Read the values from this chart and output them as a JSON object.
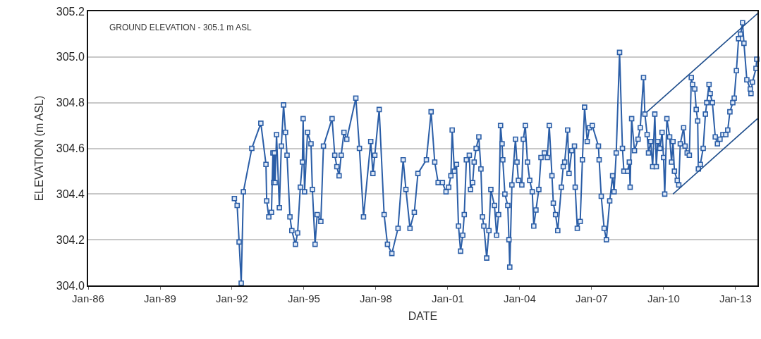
{
  "chart_data": {
    "type": "line",
    "xlabel": "DATE",
    "ylabel": "ELEVATION (m ASL)",
    "annotations": [
      "GROUND ELEVATION - 305.1 m ASL"
    ],
    "xlim": [
      "1986-01-01",
      "2013-12-02"
    ],
    "ylim": [
      304.0,
      305.2
    ],
    "xticks": [
      {
        "value": "1986-01",
        "label": "Jan-86"
      },
      {
        "value": "1989-01",
        "label": "Jan-89"
      },
      {
        "value": "1992-01",
        "label": "Jan-92"
      },
      {
        "value": "1995-01",
        "label": "Jan-95"
      },
      {
        "value": "1998-01",
        "label": "Jan-98"
      },
      {
        "value": "2001-01",
        "label": "Jan-01"
      },
      {
        "value": "2004-01",
        "label": "Jan-04"
      },
      {
        "value": "2007-01",
        "label": "Jan-07"
      },
      {
        "value": "2010-01",
        "label": "Jan-10"
      },
      {
        "value": "2013-01",
        "label": "Jan-13"
      }
    ],
    "yticks": [
      {
        "value": 304.0,
        "label": "304.0"
      },
      {
        "value": 304.2,
        "label": "304.2"
      },
      {
        "value": 304.4,
        "label": "304.4"
      },
      {
        "value": 304.6,
        "label": "304.6"
      },
      {
        "value": 304.8,
        "label": "304.8"
      },
      {
        "value": 305.0,
        "label": "305.0"
      },
      {
        "value": 305.2,
        "label": "305.2"
      }
    ],
    "grid": "y",
    "marker": "square",
    "line_style": "solid",
    "series": [
      {
        "color": "#2b5ea7",
        "x": [
          "1992-02-07",
          "1992-03-20",
          "1992-04-19",
          "1992-05-21",
          "1992-06-23",
          "1992-10-29",
          "1993-03-16",
          "1993-06-02",
          "1993-06-13",
          "1993-07-15",
          "1993-08-25",
          "1993-09-16",
          "1993-09-27",
          "1993-10-08",
          "1993-10-19",
          "1993-11-10",
          "1993-12-23",
          "1994-01-22",
          "1994-02-25",
          "1994-03-27",
          "1994-04-19",
          "1994-06-02",
          "1994-07-01",
          "1994-08-25",
          "1994-09-27",
          "1994-11-07",
          "1994-12-09",
          "1994-12-20",
          "1995-01-11",
          "1995-02-25",
          "1995-04-19",
          "1995-05-10",
          "1995-06-20",
          "1995-07-22",
          "1995-09-16",
          "1995-10-26",
          "1996-03-05",
          "1996-04-15",
          "1996-05-17",
          "1996-06-20",
          "1996-07-22",
          "1996-09-02",
          "1996-10-15",
          "1997-03-02",
          "1997-04-26",
          "1997-06-27",
          "1997-10-15",
          "1997-11-17",
          "1997-12-16",
          "1998-02-21",
          "1998-05-07",
          "1998-06-27",
          "1998-09-02",
          "1998-12-05",
          "1999-02-21",
          "1999-04-04",
          "1999-06-05",
          "1999-08-10",
          "1999-10-04",
          "2000-02-10",
          "2000-04-22",
          "2000-06-16",
          "2000-08-07",
          "2000-10-11",
          "2000-12-05",
          "2001-01-15",
          "2001-02-17",
          "2001-03-09",
          "2001-04-11",
          "2001-05-14",
          "2001-06-13",
          "2001-07-15",
          "2001-08-17",
          "2001-09-09",
          "2001-10-11",
          "2001-11-25",
          "2001-12-13",
          "2002-01-15",
          "2002-02-07",
          "2002-03-09",
          "2002-04-19",
          "2002-05-21",
          "2002-06-13",
          "2002-07-04",
          "2002-08-17",
          "2002-09-20",
          "2002-10-19",
          "2002-12-13",
          "2003-01-15",
          "2003-02-14",
          "2003-03-16",
          "2003-04-08",
          "2003-04-19",
          "2003-05-21",
          "2003-07-04",
          "2003-07-22",
          "2003-08-03",
          "2003-09-05",
          "2003-10-29",
          "2003-11-21",
          "2003-12-13",
          "2004-02-03",
          "2004-02-25",
          "2004-03-27",
          "2004-04-29",
          "2004-06-02",
          "2004-07-11",
          "2004-08-03",
          "2004-09-05",
          "2004-10-19",
          "2004-11-21",
          "2005-01-11",
          "2005-02-25",
          "2005-03-27",
          "2005-05-07",
          "2005-05-28",
          "2005-07-01",
          "2005-08-03",
          "2005-09-27",
          "2005-10-26",
          "2005-11-17",
          "2006-01-01",
          "2006-01-22",
          "2006-03-05",
          "2006-04-15",
          "2006-04-26",
          "2006-05-28",
          "2006-07-11",
          "2006-08-14",
          "2006-09-16",
          "2006-10-26",
          "2006-11-28",
          "2007-01-11",
          "2007-04-15",
          "2007-04-26",
          "2007-05-28",
          "2007-07-11",
          "2007-08-14",
          "2007-10-04",
          "2007-11-17",
          "2007-12-09",
          "2008-01-11",
          "2008-03-02",
          "2008-04-15",
          "2008-05-07",
          "2008-07-01",
          "2008-07-29",
          "2008-08-10",
          "2008-09-02",
          "2008-10-15",
          "2008-12-09",
          "2009-01-11",
          "2009-03-02",
          "2009-03-23",
          "2009-04-26",
          "2009-05-17",
          "2009-06-20",
          "2009-07-19",
          "2009-08-21",
          "2009-09-13",
          "2009-10-04",
          "2009-11-07",
          "2009-12-09",
          "2010-01-01",
          "2010-01-19",
          "2010-02-21",
          "2010-04-04",
          "2010-05-03",
          "2010-05-25",
          "2010-06-16",
          "2010-07-29",
          "2010-08-21",
          "2010-09-13",
          "2010-11-03",
          "2010-11-25",
          "2010-12-27",
          "2011-01-29",
          "2011-02-28",
          "2011-03-20",
          "2011-04-22",
          "2011-05-14",
          "2011-06-05",
          "2011-06-16",
          "2011-07-15",
          "2011-08-28",
          "2011-10-01",
          "2011-10-22",
          "2011-11-25",
          "2011-12-13",
          "2012-01-15",
          "2012-02-28",
          "2012-04-01",
          "2012-05-10",
          "2012-06-23",
          "2012-08-07",
          "2012-09-05",
          "2012-10-08",
          "2012-11-21",
          "2012-12-13",
          "2013-01-15",
          "2013-02-17",
          "2013-03-20",
          "2013-04-19",
          "2013-05-10",
          "2013-06-23",
          "2013-08-14",
          "2013-08-25",
          "2013-09-16",
          "2013-11-10",
          "2013-11-21"
        ],
        "values": [
          304.38,
          304.35,
          304.19,
          304.01,
          304.41,
          304.6,
          304.71,
          304.53,
          304.37,
          304.3,
          304.32,
          304.58,
          304.45,
          304.58,
          304.45,
          304.66,
          304.34,
          304.61,
          304.79,
          304.67,
          304.57,
          304.3,
          304.24,
          304.18,
          304.23,
          304.43,
          304.54,
          304.73,
          304.41,
          304.67,
          304.62,
          304.42,
          304.18,
          304.31,
          304.28,
          304.61,
          304.73,
          304.57,
          304.52,
          304.48,
          304.57,
          304.67,
          304.64,
          304.82,
          304.6,
          304.3,
          304.63,
          304.49,
          304.57,
          304.77,
          304.31,
          304.18,
          304.14,
          304.25,
          304.55,
          304.42,
          304.25,
          304.32,
          304.49,
          304.55,
          304.76,
          304.54,
          304.45,
          304.45,
          304.41,
          304.43,
          304.48,
          304.68,
          304.5,
          304.53,
          304.26,
          304.15,
          304.22,
          304.31,
          304.55,
          304.57,
          304.42,
          304.45,
          304.54,
          304.6,
          304.65,
          304.51,
          304.3,
          304.26,
          304.12,
          304.24,
          304.42,
          304.35,
          304.22,
          304.31,
          304.7,
          304.62,
          304.55,
          304.4,
          304.35,
          304.2,
          304.08,
          304.44,
          304.64,
          304.54,
          304.46,
          304.44,
          304.64,
          304.7,
          304.54,
          304.46,
          304.41,
          304.26,
          304.33,
          304.42,
          304.56,
          304.58,
          304.56,
          304.7,
          304.48,
          304.36,
          304.31,
          304.24,
          304.43,
          304.52,
          304.54,
          304.68,
          304.49,
          304.59,
          304.61,
          304.43,
          304.25,
          304.28,
          304.55,
          304.78,
          304.63,
          304.69,
          304.7,
          304.61,
          304.55,
          304.39,
          304.25,
          304.2,
          304.37,
          304.48,
          304.41,
          304.58,
          305.02,
          304.6,
          304.5,
          304.5,
          304.54,
          304.43,
          304.73,
          304.59,
          304.64,
          304.69,
          304.91,
          304.75,
          304.66,
          304.58,
          304.63,
          304.52,
          304.75,
          304.52,
          304.63,
          304.6,
          304.67,
          304.56,
          304.4,
          304.73,
          304.65,
          304.54,
          304.63,
          304.5,
          304.46,
          304.44,
          304.62,
          304.69,
          304.61,
          304.58,
          304.57,
          304.91,
          304.88,
          304.86,
          304.77,
          304.72,
          304.51,
          304.53,
          304.6,
          304.75,
          304.8,
          304.88,
          304.84,
          304.8,
          304.65,
          304.62,
          304.64,
          304.66,
          304.66,
          304.68,
          304.76,
          304.8,
          304.82,
          304.94,
          305.08,
          305.1,
          305.15,
          305.06,
          304.9,
          304.86,
          304.84,
          304.89,
          304.95,
          304.99
        ]
      },
      {
        "type": "line",
        "marker": "none",
        "color": "#1f4e8c",
        "x": [
          "2009-04-26",
          "2013-12-02"
        ],
        "values": [
          304.76,
          305.19
        ]
      },
      {
        "type": "line",
        "marker": "none",
        "color": "#1f4e8c",
        "x": [
          "2010-05-25",
          "2013-12-02"
        ],
        "values": [
          304.4,
          304.73
        ]
      }
    ]
  }
}
